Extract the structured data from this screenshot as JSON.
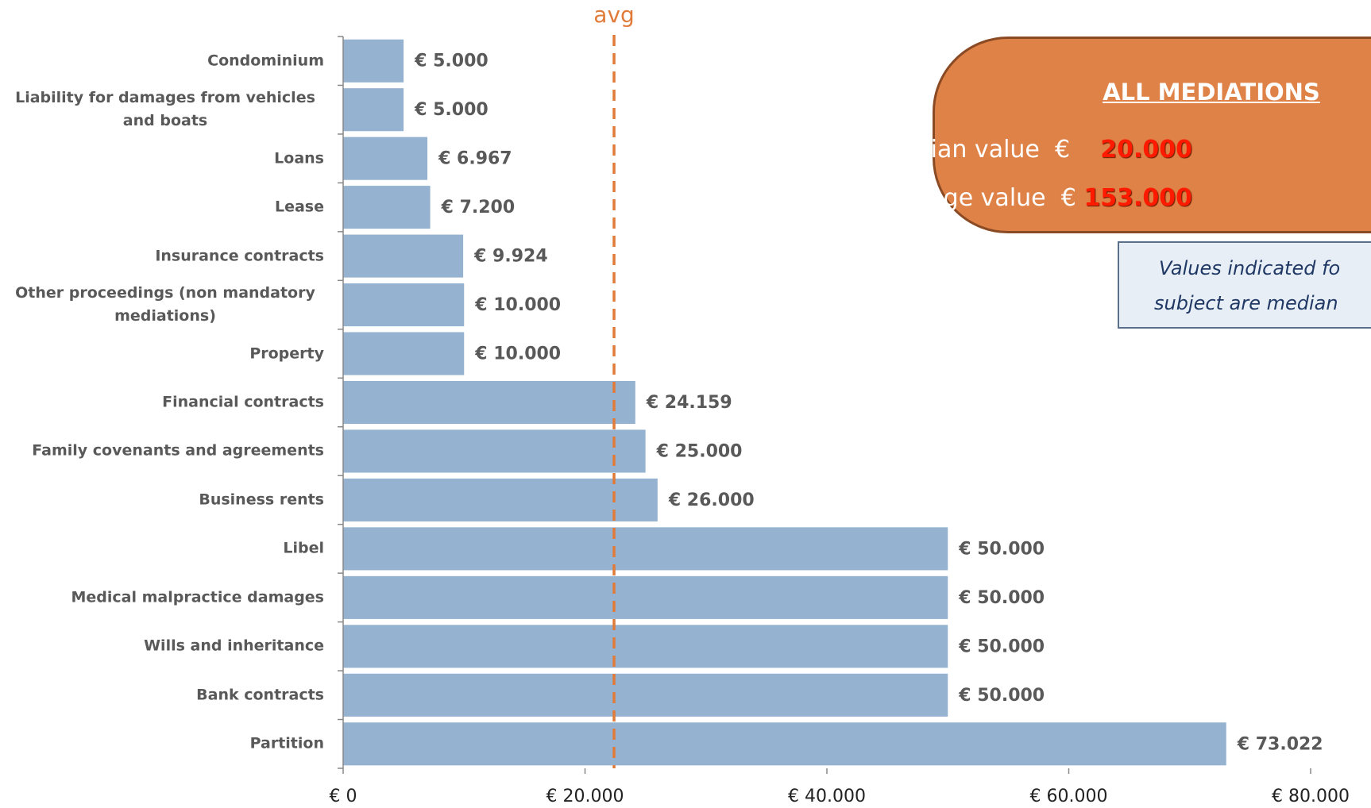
{
  "chart_data": {
    "type": "bar",
    "orientation": "horizontal",
    "categories": [
      "Condominium",
      "Liability for  damages from vehicles and boats",
      "Loans",
      "Lease",
      "Insurance contracts",
      "Other proceedings (non mandatory mediations)",
      "Property",
      "Financial contracts",
      "Family covenants and agreements",
      "Business rents",
      "Libel",
      "Medical malpractice damages",
      "Wills  and inheritance",
      "Bank contracts",
      "Partition"
    ],
    "values": [
      5000,
      5000,
      6967,
      7200,
      9924,
      10000,
      10000,
      24159,
      25000,
      26000,
      50000,
      50000,
      50000,
      50000,
      73022
    ],
    "value_labels": [
      "€ 5.000",
      "€ 5.000",
      "€ 6.967",
      "€ 7.200",
      "€ 9.924",
      "€ 10.000",
      "€ 10.000",
      "€ 24.159",
      "€ 25.000",
      "€ 26.000",
      "€ 50.000",
      "€ 50.000",
      "€ 50.000",
      "€ 50.000",
      "€ 73.022"
    ],
    "color": "#95b3d0",
    "xlim": [
      0,
      80000
    ],
    "xticks": [
      {
        "value": 0,
        "label": "€ 0"
      },
      {
        "value": 20000,
        "label": "€ 20.000"
      },
      {
        "value": 40000,
        "label": "€ 40.000"
      },
      {
        "value": 60000,
        "label": "€ 60.000"
      },
      {
        "value": 80000,
        "label": "€ 80.000"
      }
    ],
    "avg_line": {
      "label": "avg",
      "value": 22400,
      "color": "#e07b39"
    }
  },
  "summary_box": {
    "title": "ALL MEDIATIONS",
    "rows": [
      {
        "label": "Median value",
        "currency": "€",
        "amount": "20.000"
      },
      {
        "label": "Average value",
        "currency": "€",
        "amount": "153.000"
      }
    ]
  },
  "note": {
    "lines": [
      "Values indicated fo",
      "subject are median"
    ]
  }
}
